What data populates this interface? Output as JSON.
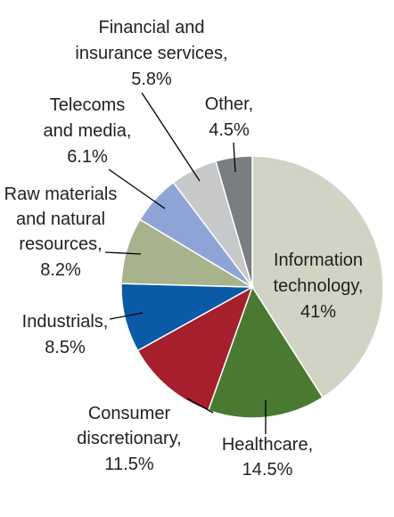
{
  "chart_data": {
    "type": "pie",
    "title": "",
    "slices": [
      {
        "key": "it",
        "label_lines": [
          "Information",
          "technology,",
          "41%"
        ],
        "value": 41,
        "color": "#d1d3c4"
      },
      {
        "key": "health",
        "label_lines": [
          "Healthcare,",
          "14.5%"
        ],
        "value": 14.5,
        "color": "#4a7a32"
      },
      {
        "key": "consumer",
        "label_lines": [
          "Consumer",
          "discretionary,",
          "11.5%"
        ],
        "value": 11.5,
        "color": "#a51f2d"
      },
      {
        "key": "industrials",
        "label_lines": [
          "Industrials,",
          "8.5%"
        ],
        "value": 8.5,
        "color": "#0a5aa8"
      },
      {
        "key": "raw",
        "label_lines": [
          "Raw materials",
          "and natural",
          "resources,",
          "8.2%"
        ],
        "value": 8.2,
        "color": "#a6b38c"
      },
      {
        "key": "telecoms",
        "label_lines": [
          "Telecoms",
          "and media,",
          "6.1%"
        ],
        "value": 6.1,
        "color": "#8ea4d6"
      },
      {
        "key": "financial",
        "label_lines": [
          "Financial and",
          "insurance services,",
          "5.8%"
        ],
        "value": 5.8,
        "color": "#c6c8ca"
      },
      {
        "key": "other",
        "label_lines": [
          "Other,",
          "4.5%"
        ],
        "value": 4.5,
        "color": "#7b7e81"
      }
    ]
  }
}
